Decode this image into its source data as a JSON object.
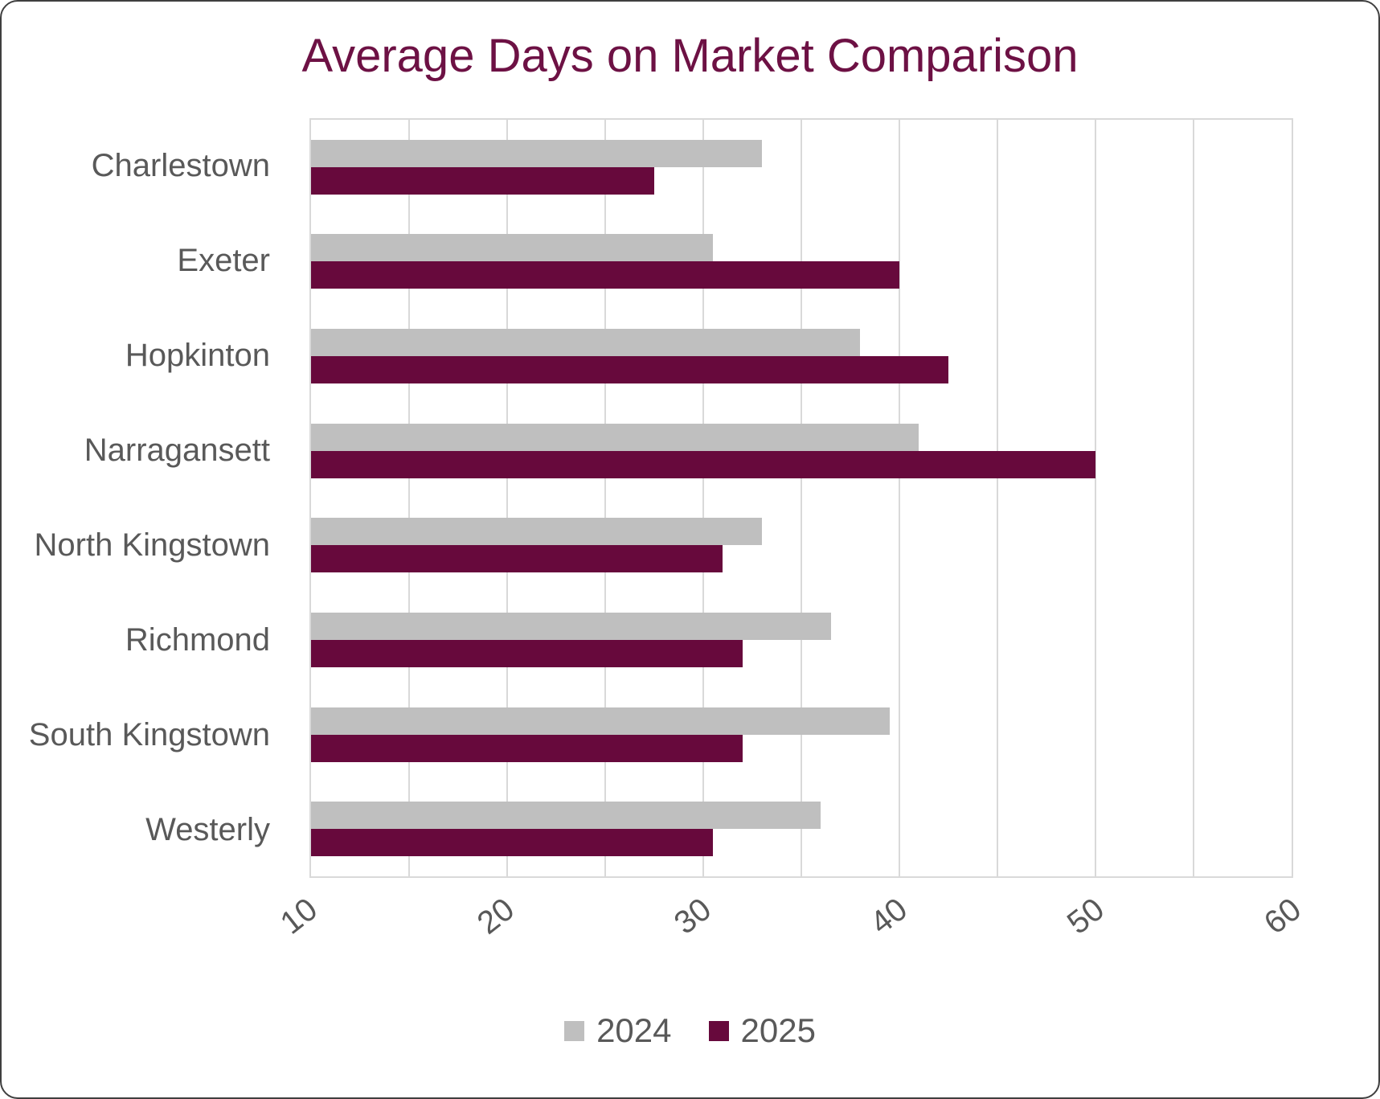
{
  "chart_data": {
    "type": "bar",
    "orientation": "horizontal",
    "title": "Average Days on Market Comparison",
    "categories": [
      "Charlestown",
      "Exeter",
      "Hopkinton",
      "Narragansett",
      "North Kingstown",
      "Richmond",
      "South Kingstown",
      "Westerly"
    ],
    "series": [
      {
        "name": "2024",
        "color": "#BFBFBF",
        "values": [
          33,
          30.5,
          38,
          41,
          33,
          36.5,
          39.5,
          36
        ]
      },
      {
        "name": "2025",
        "color": "#67093C",
        "values": [
          27.5,
          40,
          42.5,
          50,
          31,
          32,
          32,
          30.5
        ]
      }
    ],
    "x_axis": {
      "min": 10,
      "max": 60,
      "major_tick_step": 10,
      "minor_gridline_step": 5,
      "tick_labels": [
        "10",
        "20",
        "30",
        "40",
        "50",
        "60"
      ]
    },
    "legend_position": "bottom",
    "grid": true,
    "title_color": "#6D1144",
    "text_color": "#595959",
    "gridline_color": "#D9D9D9"
  }
}
